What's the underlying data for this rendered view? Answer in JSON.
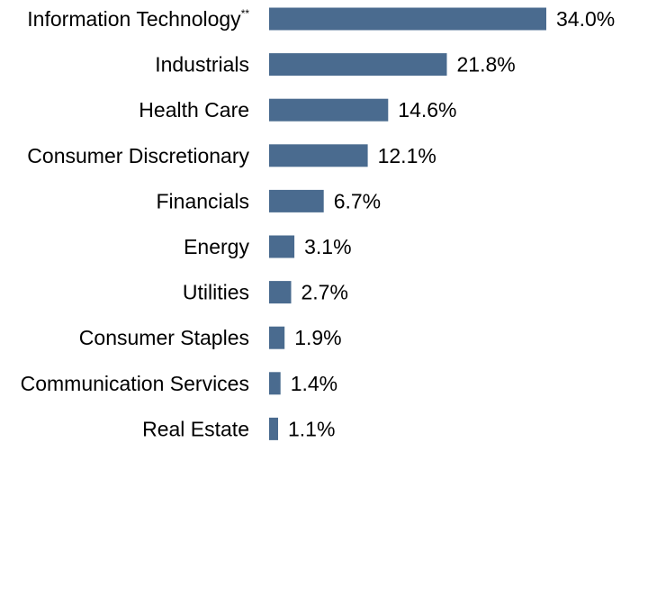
{
  "chart_data": {
    "type": "bar",
    "orientation": "horizontal",
    "categories": [
      "Information Technology",
      "Industrials",
      "Health Care",
      "Consumer Discretionary",
      "Financials",
      "Energy",
      "Utilities",
      "Consumer Staples",
      "Communication Services",
      "Real Estate"
    ],
    "category_footnotes": [
      "**",
      "",
      "",
      "",
      "",
      "",
      "",
      "",
      "",
      ""
    ],
    "values": [
      34.0,
      21.8,
      14.6,
      12.1,
      6.7,
      3.1,
      2.7,
      1.9,
      1.4,
      1.1
    ],
    "value_labels": [
      "34.0%",
      "21.8%",
      "14.6%",
      "12.1%",
      "6.7%",
      "3.1%",
      "2.7%",
      "1.9%",
      "1.4%",
      "1.1%"
    ],
    "title": "",
    "xlabel": "",
    "ylabel": "",
    "xlim": [
      0,
      34.0
    ],
    "grid": false,
    "legend": "none",
    "colors": {
      "bar": "#4a6b8f",
      "text": "#000000",
      "background": "#ffffff"
    }
  }
}
